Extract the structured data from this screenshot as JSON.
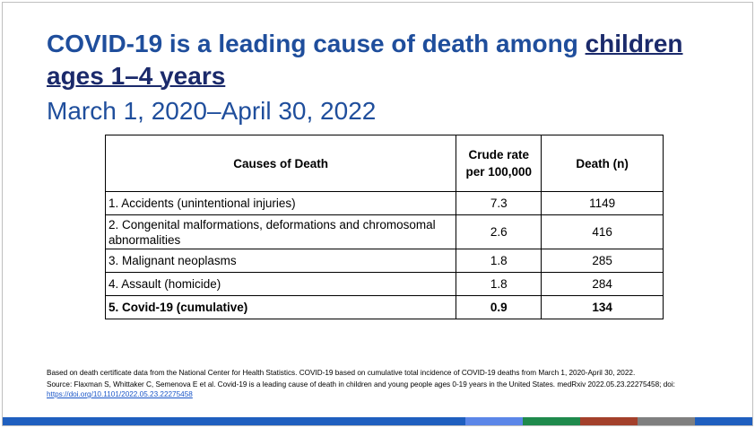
{
  "slide": {
    "title_part1": "COVID-19 is a leading cause of death among ",
    "title_underlined_1": "children",
    "title_underlined_2": "ages 1–4 years",
    "subtitle": "March 1, 2020–April 30, 2022"
  },
  "table": {
    "headers": [
      "Causes of Death",
      "Crude rate per 100,000",
      "Death (n)"
    ],
    "rows": [
      {
        "cause": "1. Accidents (unintentional injuries)",
        "rate": "7.3",
        "deaths": "1149"
      },
      {
        "cause": "2. Congenital malformations, deformations and chromosomal abnormalities",
        "rate": "2.6",
        "deaths": "416"
      },
      {
        "cause": "3. Malignant neoplasms",
        "rate": "1.8",
        "deaths": "285"
      },
      {
        "cause": "4. Assault (homicide)",
        "rate": "1.8",
        "deaths": "284"
      },
      {
        "cause": "5. Covid-19 (cumulative)",
        "rate": "0.9",
        "deaths": "134"
      }
    ]
  },
  "footnote": {
    "line1": "Based on death certificate data from the National Center for Health Statistics. COVID-19 based on cumulative total incidence of COVID-19 deaths from March 1, 2020-April 30, 2022.",
    "line2": "Source: Flaxman S, Whittaker C, Semenova E et al. Covid-19 is a leading cause of death in children and young people ages 0-19 years in the United States. medRxiv 2022.05.23.22275458; doi: ",
    "doi_link": "https://doi.org/10.1101/2022.05.23.22275458"
  },
  "colors": {
    "title": "#1f4e9c",
    "title_underline": "#1b2a6b",
    "bar_segments": [
      "#1f5fbf",
      "#1f5fbf",
      "#1f5fbf",
      "#5b86e8",
      "#1f8a4c",
      "#a3402b",
      "#7f7f7f",
      "#1f5fbf"
    ]
  }
}
